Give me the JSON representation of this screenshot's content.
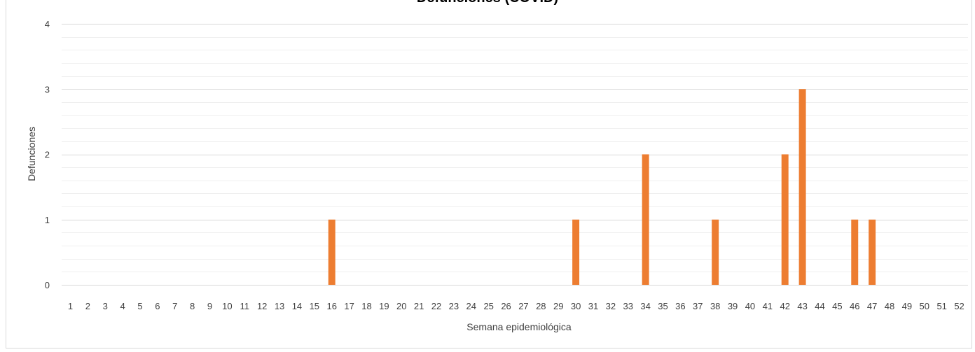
{
  "chart_data": {
    "type": "bar",
    "title": "Defunciones (COVID)",
    "xlabel": "Semana epidemiológica",
    "ylabel": "Defunciones",
    "ylim": [
      0,
      4
    ],
    "yticks": [
      "0",
      "1",
      "2",
      "3",
      "4"
    ],
    "grid": true,
    "bar_color": "#ed7d31",
    "categories": [
      "1",
      "2",
      "3",
      "4",
      "5",
      "6",
      "7",
      "8",
      "9",
      "10",
      "11",
      "12",
      "13",
      "14",
      "15",
      "16",
      "17",
      "18",
      "19",
      "20",
      "21",
      "22",
      "23",
      "24",
      "25",
      "26",
      "27",
      "28",
      "29",
      "30",
      "31",
      "32",
      "33",
      "34",
      "35",
      "36",
      "37",
      "38",
      "39",
      "40",
      "41",
      "42",
      "43",
      "44",
      "45",
      "46",
      "47",
      "48",
      "49",
      "50",
      "51",
      "52"
    ],
    "values": [
      0,
      0,
      0,
      0,
      0,
      0,
      0,
      0,
      0,
      0,
      0,
      0,
      0,
      0,
      0,
      1,
      0,
      0,
      0,
      0,
      0,
      0,
      0,
      0,
      0,
      0,
      0,
      0,
      0,
      1,
      0,
      0,
      0,
      2,
      0,
      0,
      0,
      1,
      0,
      0,
      0,
      2,
      3,
      0,
      0,
      1,
      1,
      0,
      0,
      0,
      0,
      0
    ]
  }
}
